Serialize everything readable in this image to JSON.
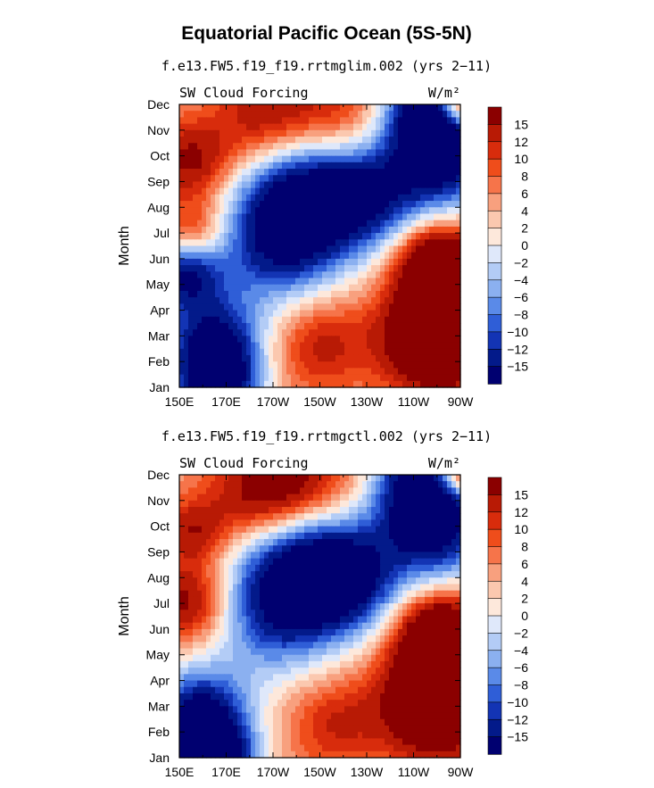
{
  "title": "Equatorial Pacific Ocean (5S-5N)",
  "chart_data": [
    {
      "type": "heatmap",
      "subtitle": "f.e13.FW5.f19_f19.rrtmglim.002 (yrs 2−11)",
      "left_label": "SW Cloud Forcing",
      "units_label": "W/m²",
      "ylabel": "Month",
      "x_ticks": [
        "150E",
        "170E",
        "170W",
        "150W",
        "130W",
        "110W",
        "90W"
      ],
      "y_ticks": [
        "Jan",
        "Feb",
        "Mar",
        "Apr",
        "May",
        "Jun",
        "Jul",
        "Aug",
        "Sep",
        "Oct",
        "Nov",
        "Dec"
      ],
      "colorbar_labels": [
        "15",
        "12",
        "10",
        "8",
        "6",
        "4",
        "2",
        "0",
        "−2",
        "−4",
        "−6",
        "−8",
        "−10",
        "−12",
        "−15"
      ],
      "features": [
        {
          "x": 0.12,
          "y": 0.15,
          "v": -20,
          "r": 0.12
        },
        {
          "x": 0.02,
          "y": 0.4,
          "v": -18,
          "r": 0.09
        },
        {
          "x": 0.45,
          "y": 0.66,
          "v": -24,
          "r": 0.16
        },
        {
          "x": 0.33,
          "y": 0.48,
          "v": -12,
          "r": 0.15
        },
        {
          "x": 0.68,
          "y": 0.66,
          "v": -12,
          "r": 0.12
        },
        {
          "x": 0.14,
          "y": 0.0,
          "v": -18,
          "r": 0.1
        },
        {
          "x": 0.92,
          "y": 0.18,
          "v": 25,
          "r": 0.14
        },
        {
          "x": 0.93,
          "y": 0.43,
          "v": 22,
          "r": 0.1
        },
        {
          "x": 0.92,
          "y": 0.83,
          "v": -25,
          "r": 0.14
        },
        {
          "x": 0.86,
          "y": 1.0,
          "v": -14,
          "r": 0.09
        },
        {
          "x": 1.0,
          "y": 1.0,
          "v": 15,
          "r": 0.05
        },
        {
          "x": 0.04,
          "y": 0.8,
          "v": 12,
          "r": 0.1
        },
        {
          "x": 0.05,
          "y": 0.55,
          "v": 9,
          "r": 0.08
        },
        {
          "x": 0.3,
          "y": 0.95,
          "v": 11,
          "r": 0.13
        },
        {
          "x": 0.55,
          "y": 0.97,
          "v": 8,
          "r": 0.13
        },
        {
          "x": 0.5,
          "y": 0.15,
          "v": 9,
          "r": 0.12
        }
      ],
      "base_value": 4
    },
    {
      "type": "heatmap",
      "subtitle": "f.e13.FW5.f19_f19.rrtmgctl.002 (yrs 2−11)",
      "left_label": "SW Cloud Forcing",
      "units_label": "W/m²",
      "ylabel": "Month",
      "x_ticks": [
        "150E",
        "170E",
        "170W",
        "150W",
        "130W",
        "110W",
        "90W"
      ],
      "y_ticks": [
        "Jan",
        "Feb",
        "Mar",
        "Apr",
        "May",
        "Jun",
        "Jul",
        "Aug",
        "Sep",
        "Oct",
        "Nov",
        "Dec"
      ],
      "colorbar_labels": [
        "15",
        "12",
        "10",
        "8",
        "6",
        "4",
        "2",
        "0",
        "−2",
        "−4",
        "−6",
        "−8",
        "−10",
        "−12",
        "−15"
      ],
      "features": [
        {
          "x": 0.08,
          "y": 0.15,
          "v": -20,
          "r": 0.12
        },
        {
          "x": 0.05,
          "y": 0.05,
          "v": -16,
          "r": 0.08
        },
        {
          "x": 0.45,
          "y": 0.66,
          "v": -24,
          "r": 0.16
        },
        {
          "x": 0.33,
          "y": 0.48,
          "v": -10,
          "r": 0.15
        },
        {
          "x": 0.62,
          "y": 0.62,
          "v": -12,
          "r": 0.12
        },
        {
          "x": 0.18,
          "y": 0.0,
          "v": -14,
          "r": 0.08
        },
        {
          "x": 0.92,
          "y": 0.2,
          "v": 25,
          "r": 0.14
        },
        {
          "x": 0.93,
          "y": 0.43,
          "v": 22,
          "r": 0.1
        },
        {
          "x": 0.9,
          "y": 0.84,
          "v": -25,
          "r": 0.14
        },
        {
          "x": 0.83,
          "y": 1.0,
          "v": -12,
          "r": 0.09
        },
        {
          "x": 1.0,
          "y": 1.0,
          "v": 15,
          "r": 0.05
        },
        {
          "x": 0.03,
          "y": 0.55,
          "v": 13,
          "r": 0.1
        },
        {
          "x": 0.05,
          "y": 0.8,
          "v": 10,
          "r": 0.08
        },
        {
          "x": 0.28,
          "y": 0.93,
          "v": 12,
          "r": 0.13
        },
        {
          "x": 0.45,
          "y": 0.97,
          "v": 10,
          "r": 0.13
        },
        {
          "x": 0.55,
          "y": 0.12,
          "v": 8,
          "r": 0.12
        }
      ],
      "base_value": 4
    }
  ],
  "colorbar_colors": [
    "#8b0000",
    "#b81a05",
    "#d82c0c",
    "#ef4d1b",
    "#f6744a",
    "#f8a07e",
    "#fbc8af",
    "#fde8db",
    "#dfe8fa",
    "#b3ccf6",
    "#8bb0f0",
    "#5a8ae8",
    "#2f5ed7",
    "#1334b4",
    "#031a8a",
    "#000070"
  ]
}
